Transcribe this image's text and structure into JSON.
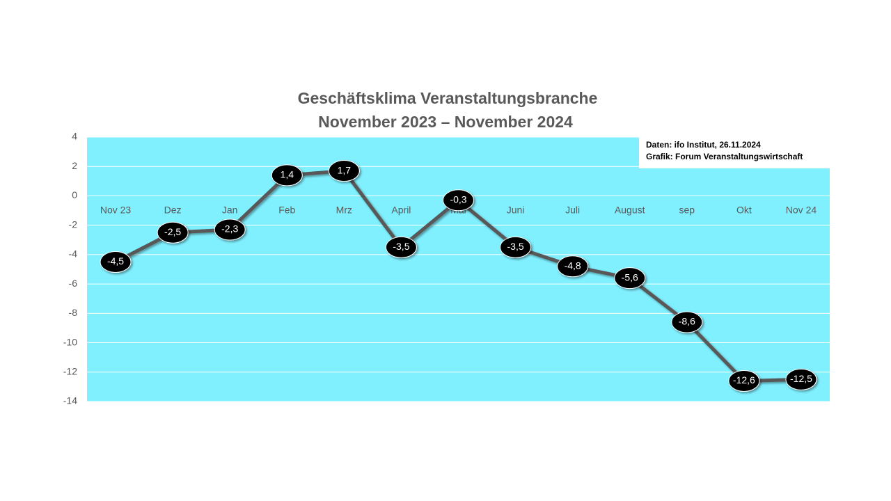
{
  "chart_data": {
    "type": "line",
    "title": "Geschäftsklima Veranstaltungsbranche",
    "subtitle": "November 2023 – November 2024",
    "annotations": [
      "Daten: ifo Institut, 26.11.2024",
      "Grafik: Forum Veranstaltungswirtschaft"
    ],
    "categories": [
      "Nov 23",
      "Dez",
      "Jan",
      "Feb",
      "Mrz",
      "April",
      "Mai",
      "Juni",
      "Juli",
      "August",
      "sep",
      "Okt",
      "Nov 24"
    ],
    "series": [
      {
        "color": "#595959",
        "values": [
          -4.5,
          -2.5,
          -2.3,
          1.4,
          1.7,
          -3.5,
          -0.3,
          -3.5,
          -4.8,
          -5.6,
          -8.6,
          -12.6,
          -12.5
        ],
        "value_labels": [
          "-4,5",
          "-2,5",
          "-2,3",
          "1,4",
          "1,7",
          "-3,5",
          "-0,3",
          "-3,5",
          "-4,8",
          "-5,6",
          "-8,6",
          "-12,6",
          "-12,5"
        ]
      }
    ],
    "ylim": [
      -14,
      4
    ],
    "yticks": [
      4,
      2,
      0,
      -2,
      -4,
      -6,
      -8,
      -10,
      -12,
      -14
    ],
    "grid": true,
    "plot_background": "#80f0ff"
  }
}
